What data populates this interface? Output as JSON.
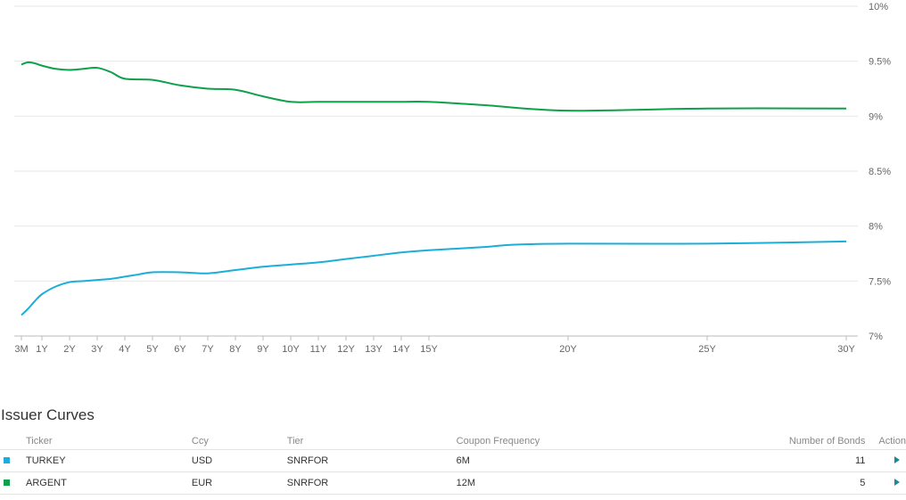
{
  "chart_data": {
    "type": "line",
    "x_ticks": [
      "3M",
      "1Y",
      "2Y",
      "3Y",
      "4Y",
      "5Y",
      "6Y",
      "7Y",
      "8Y",
      "9Y",
      "10Y",
      "11Y",
      "12Y",
      "13Y",
      "14Y",
      "15Y",
      "20Y",
      "25Y",
      "30Y"
    ],
    "y_ticks": [
      "7%",
      "7.5%",
      "8%",
      "8.5%",
      "9%",
      "9.5%",
      "10%"
    ],
    "ylim": [
      7,
      10
    ],
    "grid": true,
    "series": [
      {
        "color": "#1aaed8",
        "x": [
          0.25,
          0.5,
          0.75,
          1,
          1.5,
          2,
          2.5,
          3,
          3.5,
          4,
          4.5,
          5,
          6,
          7,
          8,
          9,
          10,
          11,
          12,
          13,
          14,
          15,
          17,
          18,
          20,
          25,
          30
        ],
        "y": [
          7.19,
          7.25,
          7.32,
          7.38,
          7.45,
          7.49,
          7.5,
          7.51,
          7.52,
          7.54,
          7.56,
          7.58,
          7.58,
          7.57,
          7.6,
          7.63,
          7.65,
          7.67,
          7.7,
          7.73,
          7.76,
          7.78,
          7.81,
          7.83,
          7.84,
          7.84,
          7.86
        ]
      },
      {
        "color": "#0fa04b",
        "x": [
          0.25,
          0.5,
          0.75,
          1,
          1.5,
          2,
          2.5,
          3,
          3.5,
          4,
          5,
          6,
          7,
          8,
          9,
          10,
          11,
          12,
          13,
          14,
          15,
          17,
          20,
          25,
          30
        ],
        "y": [
          9.47,
          9.49,
          9.48,
          9.46,
          9.43,
          9.42,
          9.43,
          9.44,
          9.4,
          9.34,
          9.33,
          9.28,
          9.25,
          9.24,
          9.18,
          9.13,
          9.13,
          9.13,
          9.13,
          9.13,
          9.13,
          9.1,
          9.05,
          9.07,
          9.07
        ]
      }
    ]
  },
  "issuer_curves": {
    "title": "Issuer Curves",
    "columns": {
      "ticker": "Ticker",
      "ccy": "Ccy",
      "tier": "Tier",
      "coupon_frequency": "Coupon Frequency",
      "number_of_bonds": "Number of Bonds",
      "action": "Action"
    },
    "rows": [
      {
        "color": "#1aaed8",
        "ticker": "TURKEY",
        "ccy": "USD",
        "tier": "SNRFOR",
        "coupon_frequency": "6M",
        "number_of_bonds": "11",
        "action_icon": "play-icon"
      },
      {
        "color": "#0fa04b",
        "ticker": "ARGENT",
        "ccy": "EUR",
        "tier": "SNRFOR",
        "coupon_frequency": "12M",
        "number_of_bonds": "5",
        "action_icon": "play-icon"
      }
    ]
  }
}
